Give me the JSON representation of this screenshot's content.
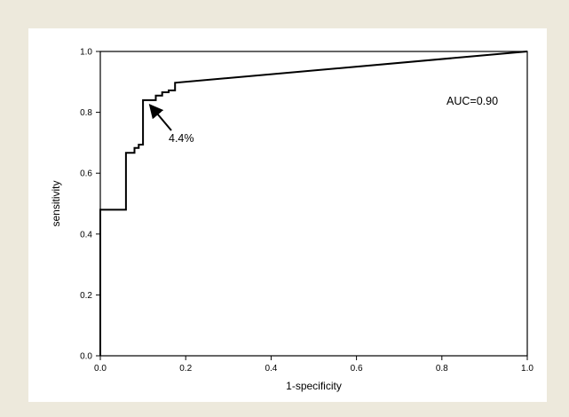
{
  "chart_data": {
    "type": "line",
    "xlabel": "1-specificity",
    "ylabel": "sensitivity",
    "xlim": [
      0,
      1
    ],
    "ylim": [
      0,
      1
    ],
    "x_ticks": [
      "0.0",
      "0.2",
      "0.4",
      "0.6",
      "0.8",
      "1.0"
    ],
    "y_ticks": [
      "0.0",
      "0.2",
      "0.4",
      "0.6",
      "0.8",
      "1.0"
    ],
    "grid": false,
    "series": [
      {
        "points": [
          [
            0.0,
            0.0
          ],
          [
            0.0,
            0.48
          ],
          [
            0.06,
            0.48
          ],
          [
            0.06,
            0.667
          ],
          [
            0.08,
            0.667
          ],
          [
            0.08,
            0.683
          ],
          [
            0.09,
            0.683
          ],
          [
            0.09,
            0.694
          ],
          [
            0.1,
            0.694
          ],
          [
            0.1,
            0.84
          ],
          [
            0.13,
            0.84
          ],
          [
            0.13,
            0.855
          ],
          [
            0.145,
            0.855
          ],
          [
            0.145,
            0.866
          ],
          [
            0.16,
            0.866
          ],
          [
            0.16,
            0.872
          ],
          [
            0.175,
            0.872
          ],
          [
            0.175,
            0.897
          ],
          [
            1.0,
            1.0
          ]
        ],
        "color": "#000000"
      }
    ],
    "annotations": [
      {
        "text": "AUC=0.90"
      },
      {
        "text": "4.4%",
        "points_to": [
          0.115,
          0.825
        ]
      }
    ]
  }
}
